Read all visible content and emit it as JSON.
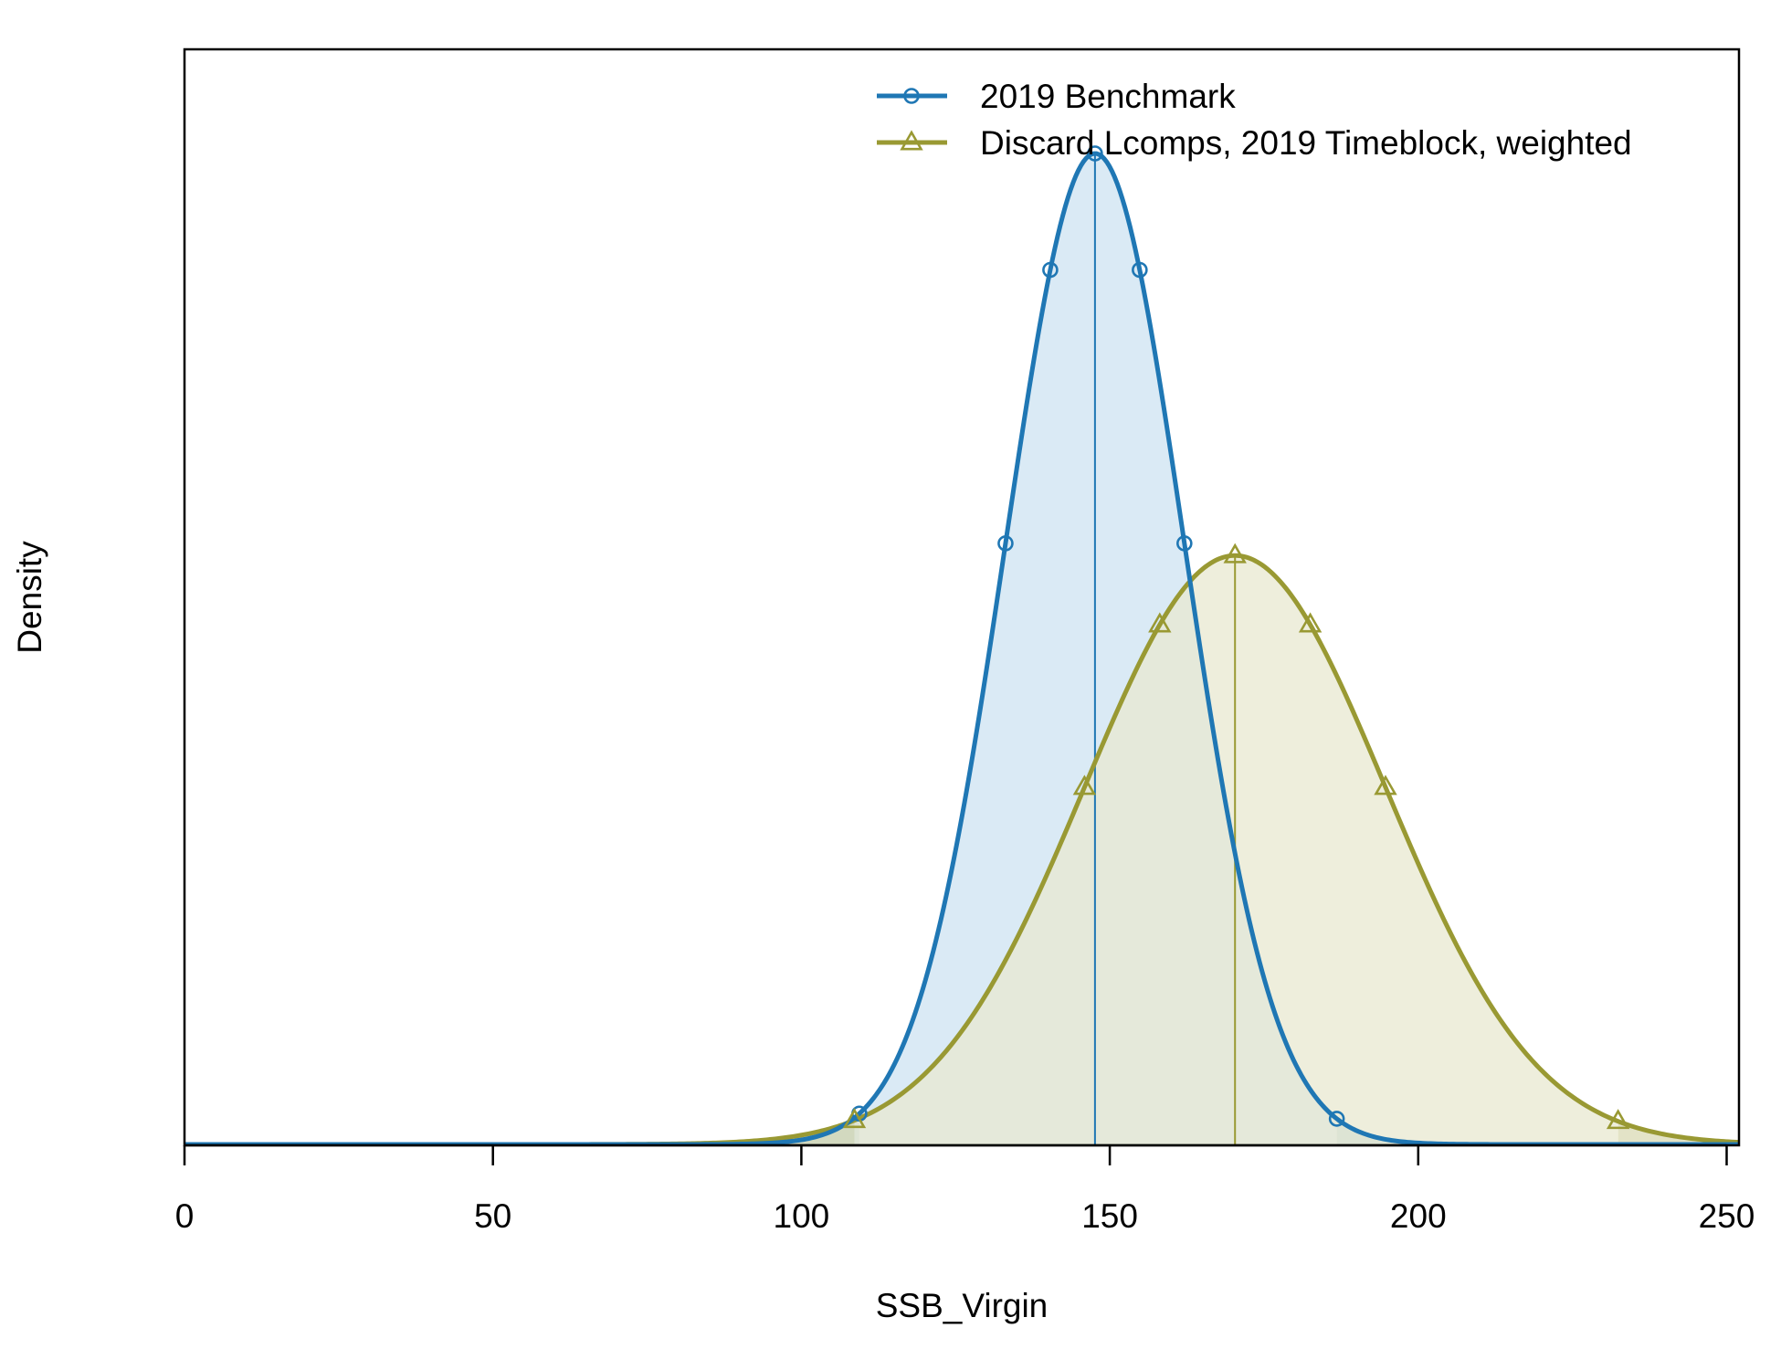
{
  "chart_data": {
    "type": "line",
    "xlabel": "SSB_Virgin",
    "ylabel": "Density",
    "xlim": [
      0,
      252
    ],
    "x_ticks": [
      0,
      50,
      100,
      150,
      200,
      250
    ],
    "y_ticks_shown": false,
    "legend_position": "top-right",
    "series": [
      {
        "name": "2019 Benchmark",
        "distribution": "normal",
        "mean": 147.6,
        "sd": 14.5,
        "interval": [
          109.4,
          186.8
        ],
        "marker": "circle",
        "color": "#1f77b4",
        "fill": "#cde3f1",
        "tail_fill": "#a6c9d1"
      },
      {
        "name": "Discard Lcomps, 2019 Timeblock, weighted",
        "distribution": "normal",
        "mean": 170.3,
        "sd": 24.4,
        "interval": [
          108.6,
          232.4
        ],
        "marker": "triangle",
        "color": "#999933",
        "fill": "#e8e8d0",
        "tail_fill": "#dadab4"
      }
    ],
    "overlap_fill": "#c3d8cc"
  }
}
